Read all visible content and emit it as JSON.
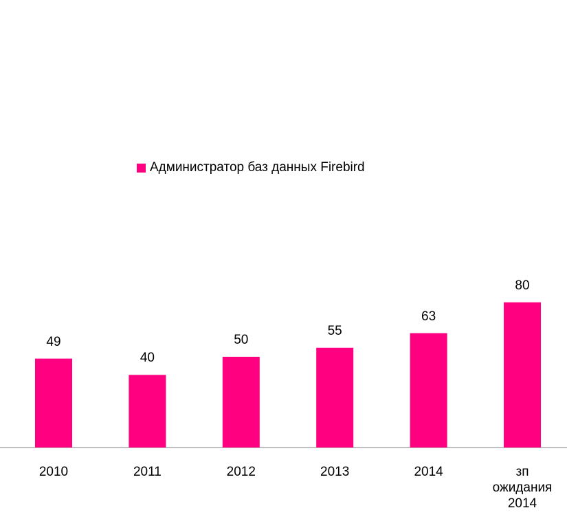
{
  "chart_data": {
    "type": "bar",
    "categories": [
      "2010",
      "2011",
      "2012",
      "2013",
      "2014",
      "зп ожидания 2014"
    ],
    "series": [
      {
        "name": "Администратор баз данных Firebird",
        "color": "#ff0080",
        "values": [
          49,
          40,
          50,
          55,
          63,
          80
        ]
      }
    ],
    "legend": "top"
  }
}
